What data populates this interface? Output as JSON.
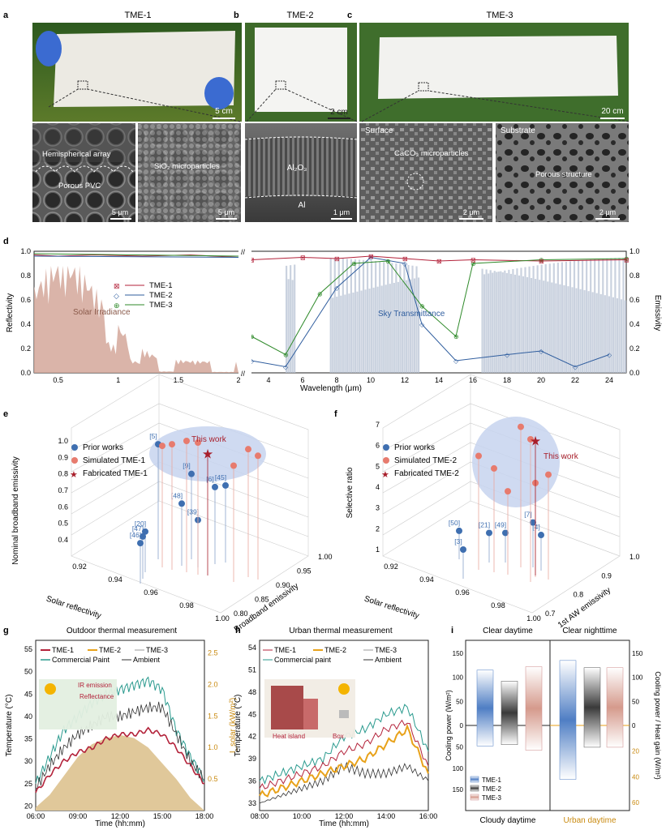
{
  "panels": {
    "a": {
      "letter": "a",
      "title": "TME-1",
      "scale": "5 cm",
      "sem1_label": "Hemispherical array",
      "sem1_sub": "Porous PVC",
      "sem1_scale": "5 μm",
      "sem2_label": "SiO₂ microparticles",
      "sem2_scale": "5 μm"
    },
    "b": {
      "letter": "b",
      "title": "TME-2",
      "scale": "2 cm",
      "sem_label": "Al₂O₃",
      "sem_sub": "Al",
      "sem_scale": "1 μm"
    },
    "c": {
      "letter": "c",
      "title": "TME-3",
      "scale": "20 cm",
      "sem1_label": "Surface",
      "sem1_sub": "CaCO₃ microparticles",
      "sem1_scale": "2 μm",
      "sem2_label": "Substrate",
      "sem2_sub": "Porous structure",
      "sem2_scale": "2 μm"
    },
    "d": {
      "letter": "d"
    },
    "e": {
      "letter": "e"
    },
    "f": {
      "letter": "f"
    },
    "g": {
      "letter": "g"
    },
    "h": {
      "letter": "h"
    },
    "i": {
      "letter": "i"
    }
  },
  "colors": {
    "tme1": "#b3223a",
    "tme2": "#2f5d9e",
    "tme3": "#2f8a2a",
    "solar": "#d4a79a",
    "sky": "#b8c3d4",
    "prior": "#3f6fb0",
    "sim": "#e77b6e",
    "fab": "#a81e2a",
    "sand": "#e0c89a",
    "commercial": "#2a9a8e",
    "ambient": "#333333",
    "gold": "#e8a21a"
  },
  "chart_data": [
    {
      "id": "d",
      "type": "line",
      "xlabel": "Wavelength (μm)",
      "ylabel_left": "Reflectivity",
      "ylabel_right": "Emissivity",
      "xticks_left": [
        "0.5",
        "1",
        "1.5",
        "2"
      ],
      "xticks_right": [
        "4",
        "6",
        "8",
        "10",
        "12",
        "14",
        "16",
        "18",
        "20",
        "22",
        "24"
      ],
      "yticks": [
        "0.0",
        "0.2",
        "0.4",
        "0.6",
        "0.8",
        "1.0"
      ],
      "legend": [
        "TME-1",
        "TME-2",
        "TME-3"
      ],
      "annotations": [
        "Solar Irradiance",
        "Sky Transmittance"
      ],
      "reflectivity_tme1": [
        [
          0.3,
          0.97
        ],
        [
          0.5,
          0.96
        ],
        [
          0.8,
          0.97
        ],
        [
          1.2,
          0.96
        ],
        [
          1.6,
          0.97
        ],
        [
          2.0,
          0.95
        ]
      ],
      "emissivity_tme1": [
        [
          3,
          0.93
        ],
        [
          6,
          0.95
        ],
        [
          8,
          0.94
        ],
        [
          10,
          0.96
        ],
        [
          12,
          0.94
        ],
        [
          14,
          0.92
        ],
        [
          16,
          0.93
        ],
        [
          20,
          0.92
        ],
        [
          25,
          0.93
        ]
      ],
      "emissivity_tme2": [
        [
          3,
          0.1
        ],
        [
          5,
          0.05
        ],
        [
          8,
          0.7
        ],
        [
          10,
          0.95
        ],
        [
          12,
          0.9
        ],
        [
          13,
          0.4
        ],
        [
          15,
          0.1
        ],
        [
          18,
          0.15
        ],
        [
          20,
          0.18
        ],
        [
          22,
          0.05
        ],
        [
          24,
          0.15
        ]
      ],
      "emissivity_tme3": [
        [
          3,
          0.3
        ],
        [
          5,
          0.15
        ],
        [
          7,
          0.65
        ],
        [
          9,
          0.9
        ],
        [
          11,
          0.92
        ],
        [
          13,
          0.55
        ],
        [
          15,
          0.3
        ],
        [
          16,
          0.9
        ],
        [
          20,
          0.93
        ],
        [
          25,
          0.94
        ]
      ]
    },
    {
      "id": "e",
      "type": "scatter",
      "xlabel": "Solar reflectivity",
      "ylabel": "Broadband emissivity",
      "zlabel": "Nominal broadband emissivity",
      "xticks": [
        "0.92",
        "0.94",
        "0.96",
        "0.98",
        "1.00"
      ],
      "yticks": [
        "0.80",
        "0.85",
        "0.90",
        "0.95",
        "1.00"
      ],
      "zticks": [
        "0.4",
        "0.5",
        "0.6",
        "0.7",
        "0.8",
        "0.9",
        "1.0"
      ],
      "legend": [
        "Prior works",
        "Simulated TME-1",
        "Fabricated TME-1"
      ],
      "annotation": "This work",
      "prior_labels": [
        "[5]",
        "[9]",
        "[6]",
        "[45]",
        "[48]",
        "[39]",
        "[20]",
        "[47]",
        "[46]"
      ],
      "prior_z": [
        0.98,
        0.8,
        0.72,
        0.73,
        0.62,
        0.52,
        0.45,
        0.42,
        0.38
      ],
      "sim_z": [
        0.97,
        0.98,
        1.0,
        0.99,
        0.95,
        0.91,
        0.85
      ],
      "fab_z": 0.92
    },
    {
      "id": "f",
      "type": "scatter",
      "xlabel": "Solar reflectivity",
      "ylabel": "1st AW emissivity",
      "zlabel": "Selective ratio",
      "xticks": [
        "0.92",
        "0.94",
        "0.96",
        "0.98",
        "1.00"
      ],
      "yticks": [
        "0.7",
        "0.8",
        "0.9",
        "1.0"
      ],
      "zticks": [
        "1",
        "2",
        "3",
        "4",
        "5",
        "6",
        "7"
      ],
      "legend": [
        "Prior works",
        "Simulated TME-2",
        "Fabricated TME-2"
      ],
      "annotation": "This work",
      "prior_labels": [
        "[50]",
        "[3]",
        "[21]",
        "[49]",
        "[7]",
        "[4]"
      ],
      "prior_z": [
        1.9,
        1.0,
        1.8,
        1.8,
        2.3,
        1.7
      ],
      "sim_z": [
        6.9,
        5.5,
        4.9,
        3.8,
        4.2,
        4.6,
        6.3
      ],
      "fab_z": 6.2
    },
    {
      "id": "g",
      "type": "line",
      "title": "Outdoor thermal measurement",
      "xlabel": "Time (hh:mm)",
      "ylabel_left": "Temperature (°C)",
      "ylabel_right": "I_solar (kW/m²)",
      "xticks": [
        "06:00",
        "09:00",
        "12:00",
        "15:00",
        "18:00"
      ],
      "yticks_left": [
        "20",
        "25",
        "30",
        "35",
        "40",
        "45",
        "50",
        "55"
      ],
      "yticks_right": [
        "0.5",
        "1.0",
        "1.5",
        "2.0",
        "2.5"
      ],
      "legend": [
        "TME-1",
        "TME-2",
        "TME-3",
        "Commercial Paint",
        "Ambient"
      ],
      "annotations": [
        "IR emission",
        "Reflectance"
      ],
      "x": [
        "06:00",
        "07:00",
        "08:00",
        "09:00",
        "10:00",
        "11:00",
        "12:00",
        "13:00",
        "14:00",
        "15:00",
        "16:00",
        "17:00",
        "18:00"
      ],
      "tme1": [
        23,
        27,
        30,
        32,
        33,
        35,
        36,
        36,
        37,
        36,
        33,
        29,
        25
      ],
      "ambient": [
        24,
        29,
        33,
        36,
        38,
        40,
        40,
        41,
        42,
        42,
        36,
        30,
        26
      ],
      "commercial": [
        25,
        31,
        37,
        40,
        43,
        45,
        46,
        47,
        48,
        46,
        37,
        31,
        26
      ],
      "solar": [
        0.05,
        0.25,
        0.55,
        0.85,
        1.05,
        1.15,
        1.2,
        1.15,
        1.0,
        0.75,
        0.5,
        0.2,
        0.0
      ]
    },
    {
      "id": "h",
      "type": "line",
      "title": "Urban thermal measurement",
      "xlabel": "Time (hh:mm)",
      "ylabel": "Temperature (°C)",
      "xticks": [
        "08:00",
        "10:00",
        "12:00",
        "14:00",
        "16:00"
      ],
      "yticks": [
        "33",
        "36",
        "39",
        "42",
        "45",
        "48",
        "51",
        "54"
      ],
      "legend": [
        "TME-1",
        "TME-2",
        "TME-3",
        "Commercial paint",
        "Ambient"
      ],
      "annotations": [
        "Heat island",
        "Box"
      ],
      "x": [
        "08:00",
        "09:00",
        "10:00",
        "11:00",
        "12:00",
        "13:00",
        "14:00",
        "15:00",
        "16:00"
      ],
      "tme2": [
        34,
        35,
        36,
        37,
        38,
        39,
        41,
        43,
        37
      ],
      "tme1": [
        35,
        36,
        37,
        38,
        40,
        41,
        43,
        44,
        38
      ],
      "commercial": [
        36,
        37,
        38,
        39,
        42,
        43,
        45,
        46,
        40
      ],
      "ambient": [
        33,
        34,
        35,
        36,
        38,
        37,
        37,
        38,
        36
      ]
    },
    {
      "id": "i",
      "type": "bar",
      "headers_top": [
        "Clear daytime",
        "Clear nighttime"
      ],
      "headers_bottom": [
        "Cloudy daytime",
        "Urban daytime"
      ],
      "ylabel_left": "Cooling power (W/m²)",
      "ylabel_right": "Cooling power / Heat gain (W/m²)",
      "yticks_left_top": [
        "0",
        "50",
        "100",
        "150"
      ],
      "yticks_left_bottom": [
        "50",
        "100",
        "150"
      ],
      "yticks_right_top": [
        "0",
        "50",
        "100",
        "150"
      ],
      "yticks_right_bottom": [
        "20",
        "40",
        "60"
      ],
      "legend": [
        "TME-1",
        "TME-2",
        "TME-3"
      ],
      "left_top": [
        115,
        92,
        122
      ],
      "left_bottom": [
        48,
        45,
        58
      ],
      "right_top": [
        135,
        120,
        120
      ],
      "right_bottom": [
        42,
        17,
        17
      ]
    }
  ]
}
